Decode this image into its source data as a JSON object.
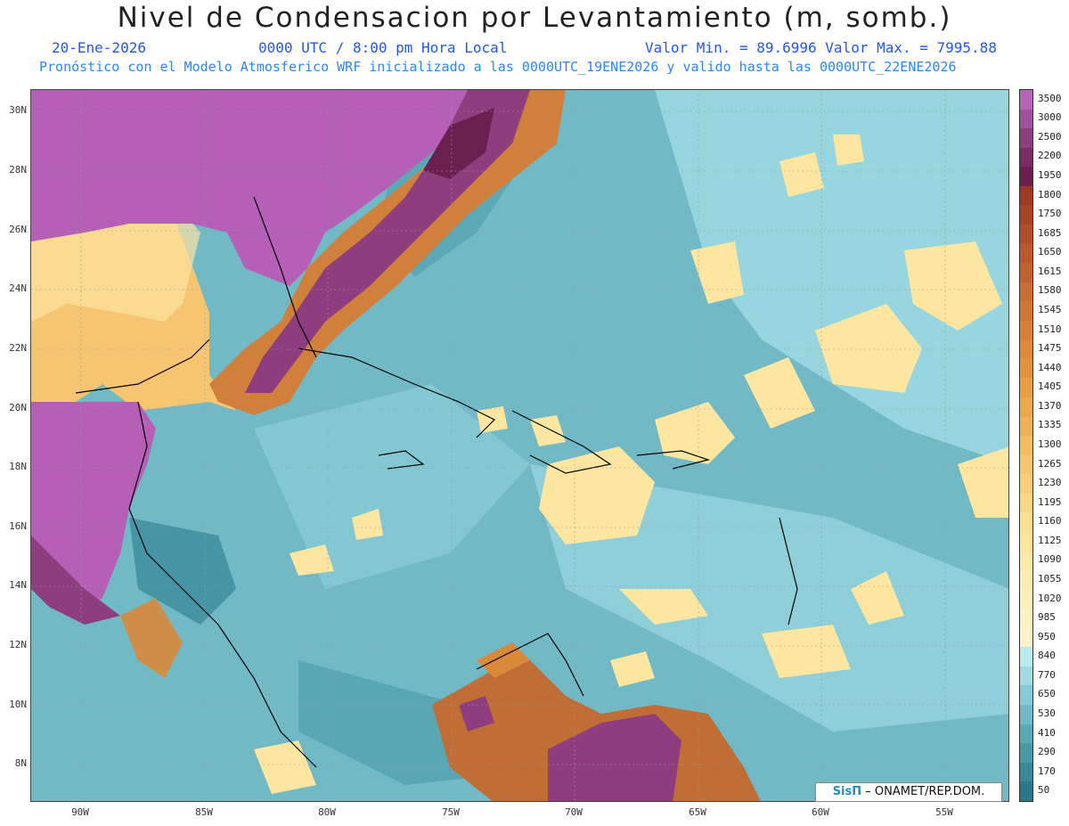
{
  "header": {
    "title": "Nivel de Condensacion por Levantamiento (m, somb.)",
    "date": "20-Ene-2026",
    "time": "0000 UTC / 8:00 pm Hora Local",
    "minmax": "Valor Min. = 89.6996  Valor Max. = 7995.88",
    "model": "Pronóstico con el Modelo Atmosferico WRF inicializado a las 0000UTC_19ENE2026 y valido hasta las  0000UTC_22ENE2026"
  },
  "map": {
    "lat_labels": [
      "30N",
      "28N",
      "26N",
      "24N",
      "22N",
      "20N",
      "18N",
      "16N",
      "14N",
      "12N",
      "10N",
      "8N"
    ],
    "lon_labels": [
      "90W",
      "85W",
      "80W",
      "75W",
      "70W",
      "65W",
      "60W",
      "55W"
    ],
    "credit_brand": "SisΠ",
    "credit_text": "– ONAMET/REP.DOM.",
    "colors": {
      "ocean_base": "#72b9c6",
      "ocean_light": "#a6e2ea",
      "ocean_dark": "#3a8c9c",
      "yellow": "#fde6a0",
      "orange": "#d88a3a",
      "brown": "#b25a22",
      "purple": "#8e3e7e",
      "magenta": "#b55fb6",
      "dark_purple": "#6a1f4e"
    }
  },
  "colorbar": {
    "labels": [
      "3500",
      "3000",
      "2500",
      "2200",
      "1950",
      "1800",
      "1750",
      "1685",
      "1650",
      "1615",
      "1580",
      "1545",
      "1510",
      "1475",
      "1440",
      "1405",
      "1370",
      "1335",
      "1300",
      "1265",
      "1230",
      "1195",
      "1160",
      "1125",
      "1090",
      "1055",
      "1020",
      "985",
      "950",
      "840",
      "770",
      "650",
      "530",
      "410",
      "290",
      "170",
      "50"
    ],
    "colors": [
      "#b664b8",
      "#a0519c",
      "#8e3e7e",
      "#7a2c64",
      "#6a1f4e",
      "#9c3a22",
      "#a74526",
      "#b0502a",
      "#b9592c",
      "#c06230",
      "#c96c32",
      "#d07634",
      "#d88036",
      "#de8a3a",
      "#e3943e",
      "#e89e44",
      "#eca84e",
      "#efb258",
      "#f2bc62",
      "#f5c66e",
      "#f7cf7a",
      "#f9d886",
      "#fbe092",
      "#fde69c",
      "#fdeaa8",
      "#fdedb2",
      "#fdf0bc",
      "#fdf2c4",
      "#fdf4cc",
      "#b8eaf0",
      "#a0dbe4",
      "#86cbd6",
      "#6fbac6",
      "#5aa9b6",
      "#4898a6",
      "#378898",
      "#2a7888"
    ]
  }
}
